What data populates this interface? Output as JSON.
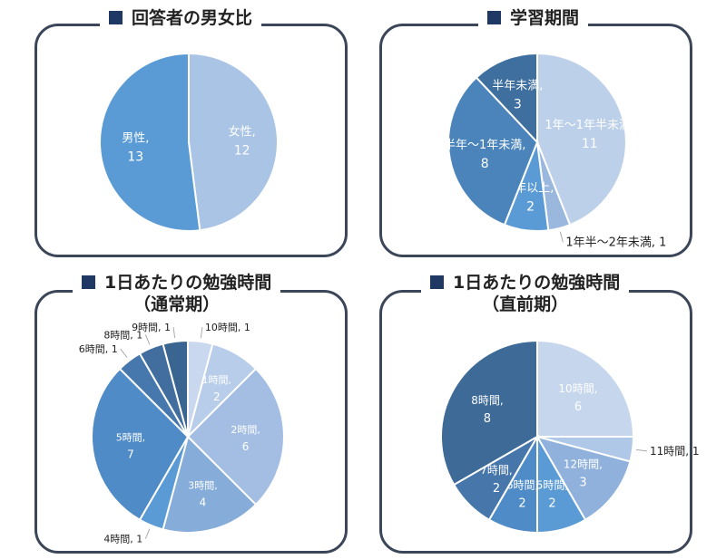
{
  "chart_data": [
    {
      "type": "pie",
      "title": "回答者の男女比",
      "slices": [
        {
          "label": "女性",
          "value": 12,
          "color": "#a9c4e4",
          "pos": "inside"
        },
        {
          "label": "男性",
          "value": 13,
          "color": "#5b9bd5",
          "pos": "inside"
        }
      ]
    },
    {
      "type": "pie",
      "title": "学習期間",
      "slices": [
        {
          "label": "1年〜1年半未満",
          "value": 11,
          "color": "#bdd0ea",
          "pos": "inside"
        },
        {
          "label": "1年半〜2年未満",
          "value": 1,
          "color": "#9ab8de",
          "pos": "outside"
        },
        {
          "label": "2年以上",
          "value": 2,
          "color": "#5b9bd5",
          "pos": "inside"
        },
        {
          "label": "半年〜1年未満",
          "value": 8,
          "color": "#4a84bb",
          "pos": "inside"
        },
        {
          "label": "半年未満",
          "value": 3,
          "color": "#3f6f9e",
          "pos": "inside"
        }
      ]
    },
    {
      "type": "pie",
      "title": "1日あたりの勉強時間",
      "subtitle": "（通常期）",
      "slices": [
        {
          "label": "10時間",
          "value": 1,
          "color": "#c9d8ee",
          "pos": "outside"
        },
        {
          "label": "1時間",
          "value": 2,
          "color": "#b8cde9",
          "pos": "inside"
        },
        {
          "label": "2時間",
          "value": 6,
          "color": "#a3bee2",
          "pos": "inside"
        },
        {
          "label": "3時間",
          "value": 4,
          "color": "#86acd9",
          "pos": "inside"
        },
        {
          "label": "4時間",
          "value": 1,
          "color": "#5b9bd5",
          "pos": "outside"
        },
        {
          "label": "5時間",
          "value": 7,
          "color": "#4f8bc6",
          "pos": "inside"
        },
        {
          "label": "6時間",
          "value": 1,
          "color": "#4678ad",
          "pos": "outside"
        },
        {
          "label": "8時間",
          "value": 1,
          "color": "#416e9e",
          "pos": "outside"
        },
        {
          "label": "9時間",
          "value": 1,
          "color": "#3b6591",
          "pos": "outside"
        }
      ]
    },
    {
      "type": "pie",
      "title": "1日あたりの勉強時間",
      "subtitle": "（直前期）",
      "slices": [
        {
          "label": "10時間",
          "value": 6,
          "color": "#c5d6ed",
          "pos": "inside"
        },
        {
          "label": "11時間",
          "value": 1,
          "color": "#b0c8e7",
          "pos": "outside"
        },
        {
          "label": "12時間",
          "value": 3,
          "color": "#8fb1dc",
          "pos": "inside"
        },
        {
          "label": "5時間",
          "value": 2,
          "color": "#5b9bd5",
          "pos": "inside"
        },
        {
          "label": "6時間",
          "value": 2,
          "color": "#4f8bc6",
          "pos": "inside"
        },
        {
          "label": "7時間",
          "value": 2,
          "color": "#4676aa",
          "pos": "inside"
        },
        {
          "label": "8時間",
          "value": 8,
          "color": "#3e6a98",
          "pos": "inside"
        }
      ]
    }
  ]
}
